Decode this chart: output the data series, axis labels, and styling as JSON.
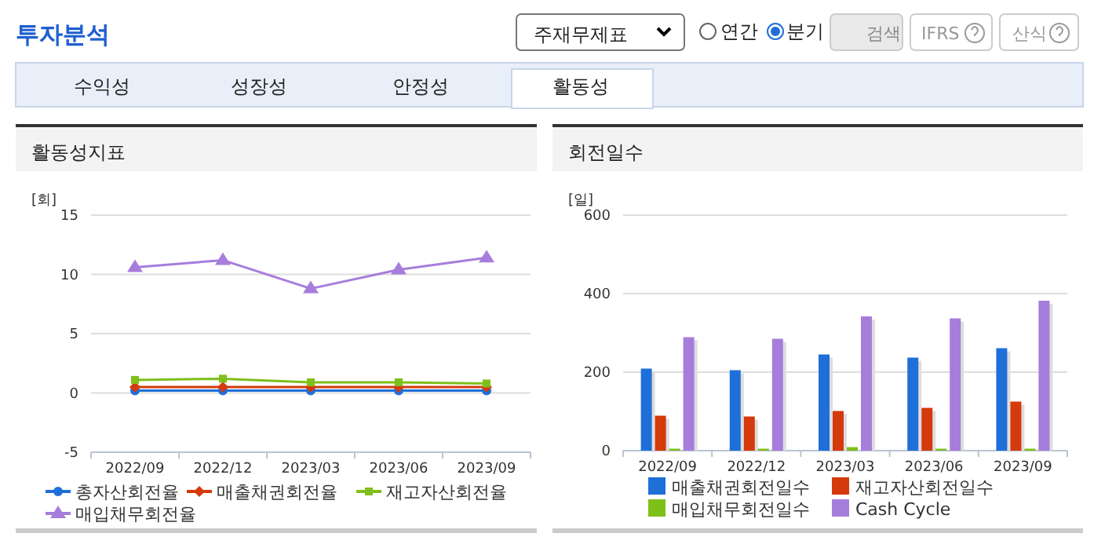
{
  "chart_data": [
    {
      "type": "other",
      "annotations": [
        "투자분석",
        "주재무제표",
        "연간",
        "분기",
        "검색",
        "IFRS",
        "산식",
        "수익성",
        "성장성",
        "안정성",
        "활동성"
      ]
    },
    {
      "type": "line",
      "title": "활동성지표",
      "ylabel": "[회]",
      "categories": [
        "2022/09",
        "2022/12",
        "2023/03",
        "2023/06",
        "2023/09"
      ],
      "ylim": [
        -5,
        15
      ],
      "yticks": [
        -5,
        0,
        5,
        10,
        15
      ],
      "grid": "y",
      "legend": "bottom",
      "series": [
        {
          "name": "총자산회전율",
          "color": "#1f6fd9",
          "marker": "circle",
          "values": [
            0.2,
            0.2,
            0.2,
            0.2,
            0.2
          ]
        },
        {
          "name": "매출채권회전율",
          "color": "#d43a0c",
          "marker": "diamond",
          "values": [
            0.5,
            0.5,
            0.5,
            0.5,
            0.5
          ]
        },
        {
          "name": "재고자산회전율",
          "color": "#7fbf1a",
          "marker": "square",
          "values": [
            1.1,
            1.2,
            0.9,
            0.9,
            0.8
          ]
        },
        {
          "name": "매입채무회전율",
          "color": "#a77ddb",
          "marker": "triangle",
          "values": [
            10.6,
            11.2,
            8.8,
            10.4,
            11.4
          ]
        }
      ]
    },
    {
      "type": "bar",
      "title": "회전일수",
      "ylabel": "[일]",
      "categories": [
        "2022/09",
        "2022/12",
        "2023/03",
        "2023/06",
        "2023/09"
      ],
      "ylim": [
        0,
        600
      ],
      "yticks": [
        0,
        200,
        400,
        600
      ],
      "grid": "y",
      "legend": "bottom",
      "series": [
        {
          "name": "매출채권회전일수",
          "color": "#1f6fd9",
          "values": [
            209,
            205,
            245,
            237,
            261
          ]
        },
        {
          "name": "재고자산회전일수",
          "color": "#d43a0c",
          "values": [
            89,
            87,
            101,
            109,
            125
          ]
        },
        {
          "name": "매입채무회전일수",
          "color": "#7fbf1a",
          "values": [
            5,
            5,
            9,
            5,
            5
          ]
        },
        {
          "name": "Cash Cycle",
          "color": "#a77ddb",
          "values": [
            289,
            285,
            342,
            337,
            382
          ]
        }
      ]
    }
  ]
}
